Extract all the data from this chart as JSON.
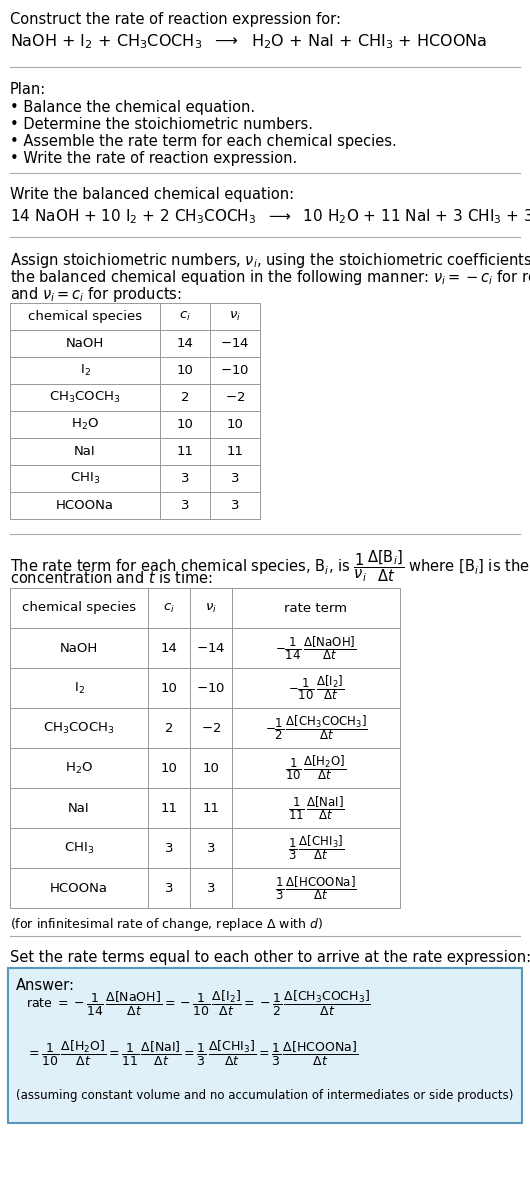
{
  "bg_color": "#ffffff",
  "text_color": "#000000",
  "table_border_color": "#999999",
  "table_header_bg": "#ffffff",
  "answer_box_color": "#dff0f8",
  "answer_box_border": "#5599bb",
  "sep_line_color": "#aaaaaa"
}
